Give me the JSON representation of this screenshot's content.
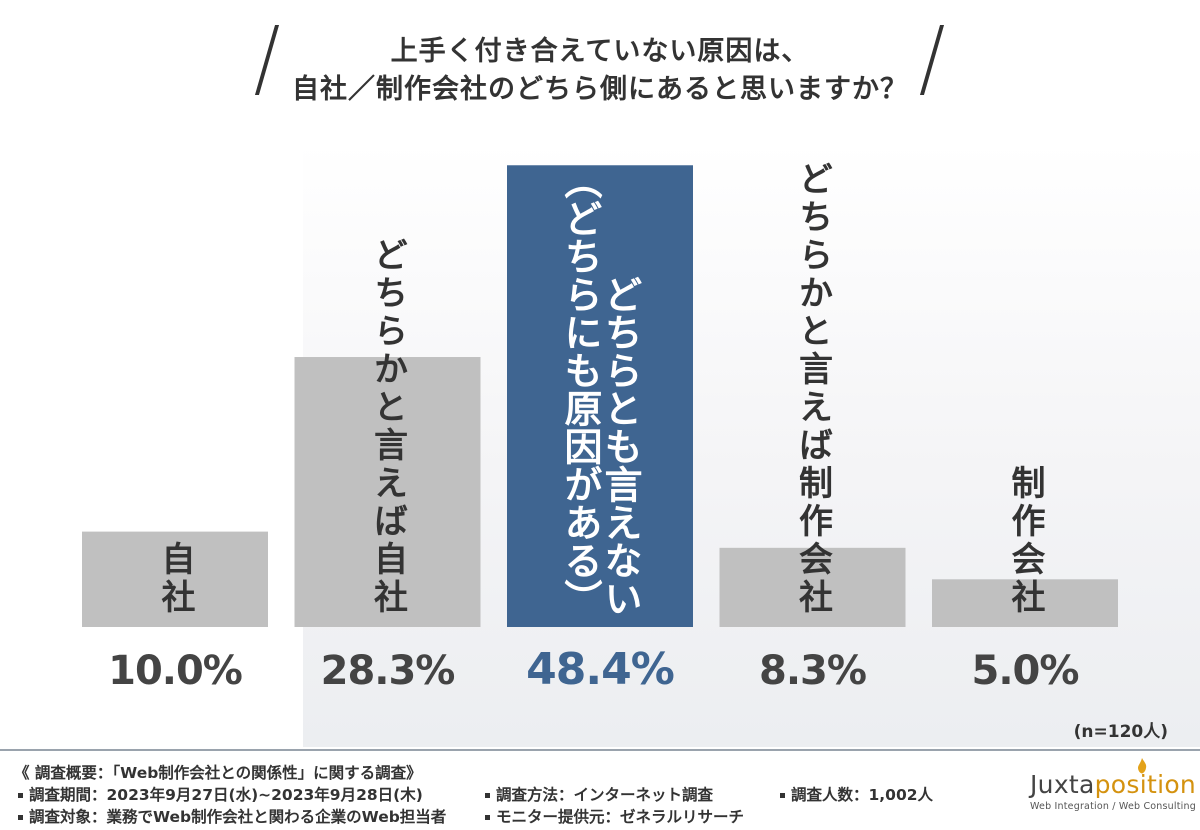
{
  "title": {
    "line1": "上手く付き合えていない原因は、",
    "line2": "自社／制作会社のどちら側にあると思いますか？"
  },
  "chart_data": {
    "type": "bar",
    "categories": [
      "自社",
      "どちらかと言えば自社",
      "どちらとも言えない（どちらにも原因がある）",
      "どちらかと言えば制作会社",
      "制作会社"
    ],
    "bar_labels": [
      [
        "自社"
      ],
      [
        "どちらかと言えば自社"
      ],
      [
        "どちらとも言えない",
        "（どちらにも原因がある）"
      ],
      [
        "どちらかと言えば制作会社"
      ],
      [
        "制作会社"
      ]
    ],
    "values": [
      10.0,
      28.3,
      48.4,
      8.3,
      5.0
    ],
    "value_labels": [
      "10.0%",
      "28.3%",
      "48.4%",
      "8.3%",
      "5.0%"
    ],
    "highlight_index": 2,
    "colors": {
      "bar": "#c0c0c0",
      "highlight": "#3f6591",
      "value_text": "#444444",
      "highlight_text": "#3f6591",
      "label_text": "#333333",
      "highlight_label_text": "#ffffff"
    },
    "ylim": [
      0,
      50
    ],
    "grid": false,
    "legend": "none"
  },
  "sample_note": "(n=120人)",
  "footer": {
    "overview": "《 調査概要：「Web制作会社との関係性」に関する調査》",
    "period": "調査期間：2023年9月27日(水)~2023年9月28日(木)",
    "target": "調査対象：業務でWeb制作会社と関わる企業のWeb担当者",
    "method": "調査方法：インターネット調査",
    "monitor": "モニター提供元：ゼネラルリサーチ",
    "count": "調査人数：1,002人"
  },
  "logo": {
    "name_main": "Juxta",
    "name_accent": "position",
    "tagline": "Web Integration / Web Consulting"
  }
}
